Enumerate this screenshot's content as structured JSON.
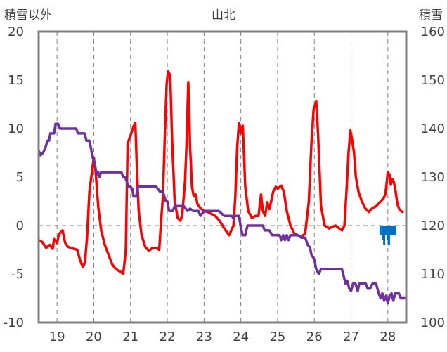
{
  "chart_data": {
    "type": "line",
    "title": "山北",
    "ylabel_left": "積雪以外",
    "ylabel_right": "積雪",
    "x_tick_labels": [
      "19",
      "20",
      "21",
      "22",
      "23",
      "24",
      "25",
      "26",
      "27",
      "28"
    ],
    "xlim": [
      18.5,
      28.5
    ],
    "ylim_left": [
      -10,
      20
    ],
    "ylim_right": [
      100,
      160
    ],
    "yticks_left": [
      "20",
      "15",
      "10",
      "5",
      "0",
      "-5",
      "-10"
    ],
    "yticks_right": [
      "160",
      "150",
      "140",
      "130",
      "120",
      "110",
      "100"
    ],
    "grid": "dashed-vertical-at-days",
    "legend": "none",
    "colors": {
      "temperature": "#ff0000",
      "snow_depth": "#7030a0",
      "precipitation": "#0070c0",
      "frame": "#808080"
    },
    "series": [
      {
        "axis": "left",
        "color": "#ff0000",
        "points": [
          [
            18.5,
            -1.5
          ],
          [
            18.6,
            -1.7
          ],
          [
            18.7,
            -2.3
          ],
          [
            18.8,
            -2.0
          ],
          [
            18.88,
            -2.4
          ],
          [
            18.92,
            -1.4
          ],
          [
            19.0,
            -1.8
          ],
          [
            19.05,
            -0.9
          ],
          [
            19.15,
            -0.5
          ],
          [
            19.22,
            -1.8
          ],
          [
            19.3,
            -2.2
          ],
          [
            19.45,
            -2.4
          ],
          [
            19.55,
            -2.5
          ],
          [
            19.62,
            -3.5
          ],
          [
            19.7,
            -4.3
          ],
          [
            19.76,
            -3.8
          ],
          [
            19.82,
            -1.0
          ],
          [
            19.88,
            3.5
          ],
          [
            19.95,
            5.5
          ],
          [
            20.0,
            7.0
          ],
          [
            20.05,
            5.5
          ],
          [
            20.12,
            2.0
          ],
          [
            20.2,
            -0.5
          ],
          [
            20.3,
            -2.0
          ],
          [
            20.4,
            -3.0
          ],
          [
            20.5,
            -4.0
          ],
          [
            20.6,
            -4.5
          ],
          [
            20.7,
            -4.7
          ],
          [
            20.8,
            -5.0
          ],
          [
            20.87,
            -2.5
          ],
          [
            20.92,
            8.5
          ],
          [
            21.0,
            9.3
          ],
          [
            21.08,
            10.2
          ],
          [
            21.13,
            10.6
          ],
          [
            21.18,
            5.0
          ],
          [
            21.22,
            1.5
          ],
          [
            21.3,
            -1.0
          ],
          [
            21.4,
            -2.2
          ],
          [
            21.5,
            -2.6
          ],
          [
            21.6,
            -2.3
          ],
          [
            21.7,
            -2.3
          ],
          [
            21.78,
            -2.5
          ],
          [
            21.83,
            0.5
          ],
          [
            21.88,
            3.0
          ],
          [
            21.93,
            9.0
          ],
          [
            21.98,
            14.5
          ],
          [
            22.02,
            15.9
          ],
          [
            22.08,
            15.5
          ],
          [
            22.13,
            9.0
          ],
          [
            22.2,
            2.5
          ],
          [
            22.28,
            0.8
          ],
          [
            22.35,
            0.5
          ],
          [
            22.4,
            1.0
          ],
          [
            22.48,
            4.5
          ],
          [
            22.52,
            8.0
          ],
          [
            22.57,
            14.8
          ],
          [
            22.62,
            8.0
          ],
          [
            22.67,
            4.0
          ],
          [
            22.72,
            3.0
          ],
          [
            22.77,
            3.2
          ],
          [
            22.82,
            2.2
          ],
          [
            22.9,
            1.8
          ],
          [
            23.0,
            1.5
          ],
          [
            23.1,
            1.4
          ],
          [
            23.2,
            1.2
          ],
          [
            23.3,
            1.0
          ],
          [
            23.42,
            0.5
          ],
          [
            23.55,
            -0.3
          ],
          [
            23.68,
            -1.0
          ],
          [
            23.74,
            -0.5
          ],
          [
            23.8,
            0.0
          ],
          [
            23.85,
            3.0
          ],
          [
            23.9,
            8.0
          ],
          [
            23.95,
            10.6
          ],
          [
            24.0,
            9.5
          ],
          [
            24.05,
            10.3
          ],
          [
            24.08,
            8.0
          ],
          [
            24.12,
            4.0
          ],
          [
            24.2,
            1.5
          ],
          [
            24.3,
            0.8
          ],
          [
            24.4,
            1.0
          ],
          [
            24.48,
            1.0
          ],
          [
            24.55,
            3.2
          ],
          [
            24.6,
            1.5
          ],
          [
            24.66,
            1.0
          ],
          [
            24.72,
            2.4
          ],
          [
            24.78,
            1.7
          ],
          [
            24.83,
            2.6
          ],
          [
            24.88,
            3.5
          ],
          [
            24.95,
            4.0
          ],
          [
            25.0,
            3.8
          ],
          [
            25.1,
            4.1
          ],
          [
            25.17,
            3.5
          ],
          [
            25.25,
            1.5
          ],
          [
            25.35,
            0.0
          ],
          [
            25.45,
            -0.8
          ],
          [
            25.55,
            -1.0
          ],
          [
            25.65,
            -1.2
          ],
          [
            25.75,
            -0.8
          ],
          [
            25.85,
            2.5
          ],
          [
            25.92,
            8.5
          ],
          [
            25.98,
            12.0
          ],
          [
            26.05,
            12.8
          ],
          [
            26.1,
            9.5
          ],
          [
            26.18,
            2.0
          ],
          [
            26.28,
            0.0
          ],
          [
            26.4,
            -0.3
          ],
          [
            26.5,
            -0.1
          ],
          [
            26.58,
            0.0
          ],
          [
            26.68,
            -0.3
          ],
          [
            26.75,
            -0.5
          ],
          [
            26.82,
            0.0
          ],
          [
            26.88,
            4.0
          ],
          [
            26.93,
            7.5
          ],
          [
            26.98,
            9.8
          ],
          [
            27.02,
            9.0
          ],
          [
            27.08,
            7.5
          ],
          [
            27.13,
            5.0
          ],
          [
            27.2,
            3.5
          ],
          [
            27.28,
            2.6
          ],
          [
            27.38,
            1.8
          ],
          [
            27.48,
            1.4
          ],
          [
            27.58,
            1.8
          ],
          [
            27.68,
            2.0
          ],
          [
            27.78,
            2.4
          ],
          [
            27.88,
            2.8
          ],
          [
            27.93,
            3.2
          ],
          [
            27.97,
            4.5
          ],
          [
            28.0,
            5.5
          ],
          [
            28.05,
            5.2
          ],
          [
            28.08,
            4.2
          ],
          [
            28.12,
            4.8
          ],
          [
            28.16,
            4.5
          ],
          [
            28.2,
            3.8
          ],
          [
            28.26,
            2.2
          ],
          [
            28.32,
            1.6
          ],
          [
            28.4,
            1.4
          ]
        ]
      },
      {
        "axis": "right",
        "color": "#7030a0",
        "points": [
          [
            18.5,
            135.5
          ],
          [
            18.55,
            134.5
          ],
          [
            18.62,
            135.0
          ],
          [
            18.68,
            136.0
          ],
          [
            18.74,
            137.5
          ],
          [
            18.78,
            137.5
          ],
          [
            18.82,
            139.0
          ],
          [
            18.92,
            139.0
          ],
          [
            18.96,
            141.0
          ],
          [
            19.03,
            141.0
          ],
          [
            19.08,
            140.0
          ],
          [
            19.52,
            140.0
          ],
          [
            19.57,
            139.0
          ],
          [
            19.75,
            139.0
          ],
          [
            19.8,
            137.5
          ],
          [
            19.88,
            137.5
          ],
          [
            19.92,
            136.0
          ],
          [
            19.97,
            134.0
          ],
          [
            20.02,
            133.0
          ],
          [
            20.08,
            130.5
          ],
          [
            20.12,
            131.0
          ],
          [
            20.15,
            130.0
          ],
          [
            20.2,
            131.0
          ],
          [
            20.55,
            131.0
          ],
          [
            20.75,
            131.0
          ],
          [
            20.8,
            130.0
          ],
          [
            20.85,
            130.0
          ],
          [
            20.9,
            129.0
          ],
          [
            20.95,
            128.0
          ],
          [
            21.0,
            128.0
          ],
          [
            21.05,
            127.5
          ],
          [
            21.08,
            126.0
          ],
          [
            21.15,
            126.0
          ],
          [
            21.2,
            128.0
          ],
          [
            21.7,
            128.0
          ],
          [
            21.8,
            127.0
          ],
          [
            21.88,
            127.0
          ],
          [
            21.92,
            126.0
          ],
          [
            21.96,
            125.0
          ],
          [
            22.0,
            125.0
          ],
          [
            22.05,
            123.0
          ],
          [
            22.15,
            123.0
          ],
          [
            22.2,
            124.0
          ],
          [
            22.45,
            124.0
          ],
          [
            22.55,
            123.0
          ],
          [
            22.62,
            123.5
          ],
          [
            22.7,
            123.0
          ],
          [
            22.85,
            123.0
          ],
          [
            22.9,
            122.0
          ],
          [
            23.0,
            123.0
          ],
          [
            23.4,
            123.0
          ],
          [
            23.55,
            122.0
          ],
          [
            23.75,
            122.0
          ],
          [
            23.8,
            121.5
          ],
          [
            23.85,
            122.0
          ],
          [
            23.95,
            122.0
          ],
          [
            24.0,
            119.5
          ],
          [
            24.05,
            118.0
          ],
          [
            24.12,
            118.0
          ],
          [
            24.18,
            120.0
          ],
          [
            24.6,
            120.0
          ],
          [
            24.65,
            119.0
          ],
          [
            24.78,
            119.0
          ],
          [
            24.85,
            118.0
          ],
          [
            25.05,
            118.0
          ],
          [
            25.1,
            117.0
          ],
          [
            25.15,
            118.0
          ],
          [
            25.2,
            117.0
          ],
          [
            25.25,
            118.0
          ],
          [
            25.3,
            117.0
          ],
          [
            25.35,
            118.0
          ],
          [
            25.45,
            118.0
          ],
          [
            25.55,
            118.0
          ],
          [
            25.65,
            117.5
          ],
          [
            25.75,
            117.5
          ],
          [
            25.82,
            116.0
          ],
          [
            25.88,
            115.5
          ],
          [
            25.92,
            114.0
          ],
          [
            26.0,
            113.0
          ],
          [
            26.05,
            111.0
          ],
          [
            26.12,
            110.0
          ],
          [
            26.18,
            111.0
          ],
          [
            26.75,
            111.0
          ],
          [
            26.8,
            109.5
          ],
          [
            26.85,
            108.0
          ],
          [
            26.9,
            108.5
          ],
          [
            26.95,
            107.0
          ],
          [
            27.0,
            106.5
          ],
          [
            27.05,
            108.0
          ],
          [
            27.12,
            108.0
          ],
          [
            27.18,
            106.5
          ],
          [
            27.22,
            108.0
          ],
          [
            27.4,
            108.0
          ],
          [
            27.45,
            107.0
          ],
          [
            27.52,
            107.0
          ],
          [
            27.58,
            108.0
          ],
          [
            27.68,
            108.0
          ],
          [
            27.75,
            106.0
          ],
          [
            27.8,
            105.0
          ],
          [
            27.85,
            106.0
          ],
          [
            27.9,
            104.5
          ],
          [
            27.95,
            105.5
          ],
          [
            28.0,
            104.0
          ],
          [
            28.05,
            105.5
          ],
          [
            28.1,
            106.0
          ],
          [
            28.15,
            104.5
          ],
          [
            28.2,
            106.0
          ],
          [
            28.3,
            106.0
          ],
          [
            28.35,
            105.0
          ],
          [
            28.45,
            105.0
          ]
        ]
      },
      {
        "axis": "left",
        "color": "#0070c0",
        "type": "bar-downward",
        "points": [
          [
            27.8,
            -1.0
          ],
          [
            27.86,
            -1.5
          ],
          [
            27.9,
            -2.0
          ],
          [
            27.95,
            -1.0
          ],
          [
            28.0,
            -1.5
          ],
          [
            28.03,
            -2.0
          ],
          [
            28.07,
            -1.0
          ],
          [
            28.1,
            -1.0
          ],
          [
            28.15,
            -1.0
          ],
          [
            28.2,
            -1.0
          ]
        ]
      }
    ]
  }
}
